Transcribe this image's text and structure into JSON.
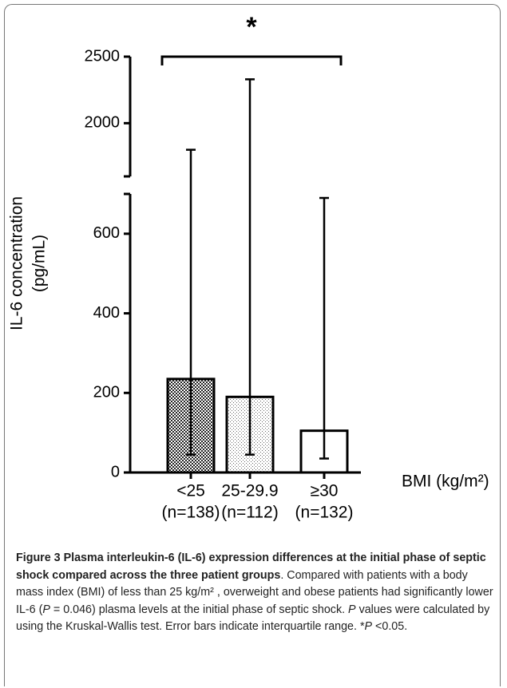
{
  "chart_data": {
    "type": "bar",
    "annotation": "*",
    "ylabel": [
      "IL-6 concentration",
      "(pg/mL)"
    ],
    "xlabel": "BMI (kg/m²)",
    "categories": [
      "<25",
      "25-29.9",
      "≥30"
    ],
    "category_counts": [
      "(n=138)",
      "(n=112)",
      "(n=132)"
    ],
    "values": [
      235,
      190,
      105
    ],
    "err_low": [
      45,
      45,
      35
    ],
    "err_high": [
      1800,
      2330,
      690
    ],
    "ylim": [
      0,
      700
    ],
    "ylim_upper": [
      1600,
      2500
    ],
    "yticks": [
      0,
      200,
      400,
      600
    ],
    "yticks_upper": [
      2000,
      2500
    ]
  },
  "caption": [
    {
      "text": "Figure 3 Plasma interleukin-6 (IL-6) expression differences at the initial phase of septic shock compared across the three patient groups",
      "style": "bold"
    },
    {
      "text": ". Compared with patients with a body mass index (BMI) of less than 25 kg/m² , overweight and obese patients had significantly lower IL-6 (",
      "style": "normal"
    },
    {
      "text": "P",
      "style": "italic"
    },
    {
      "text": " = 0.046) plasma levels at the initial phase of septic shock. ",
      "style": "normal"
    },
    {
      "text": "P",
      "style": "italic"
    },
    {
      "text": " values were calculated by using the Kruskal-Wallis test. Error bars indicate interquartile range. *",
      "style": "normal"
    },
    {
      "text": "P",
      "style": "italic"
    },
    {
      "text": " <0.05.",
      "style": "normal"
    }
  ]
}
